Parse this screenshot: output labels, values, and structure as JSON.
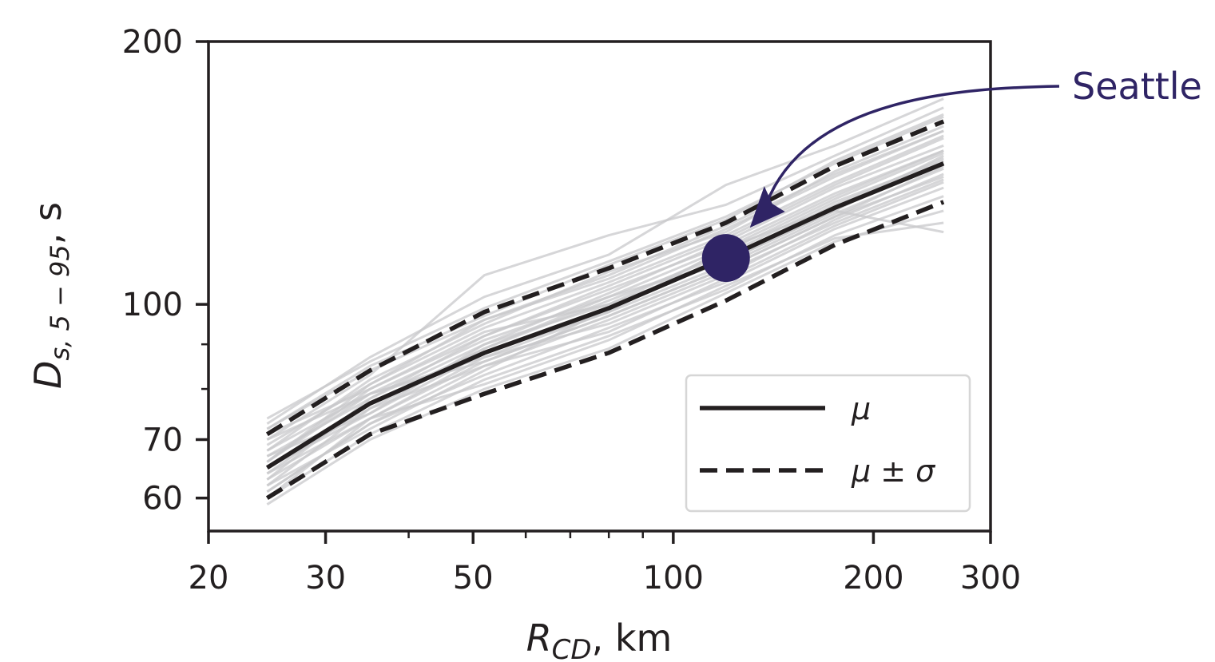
{
  "chart_data": {
    "type": "line",
    "xscale": "log",
    "yscale": "log",
    "xlim": [
      20,
      300
    ],
    "ylim": [
      55,
      200
    ],
    "xlabel": {
      "main": "R",
      "sub": "CD",
      "rest": ", km"
    },
    "ylabel": {
      "main": "D",
      "sub": "s, 5 − 95",
      "rest": ", s"
    },
    "xticks": [
      {
        "value": 20,
        "label": "20"
      },
      {
        "value": 30,
        "label": "30"
      },
      {
        "value": 50,
        "label": "50"
      },
      {
        "value": 100,
        "label": "100"
      },
      {
        "value": 200,
        "label": "200"
      },
      {
        "value": 300,
        "label": "300"
      }
    ],
    "xminor_ticks": [
      40,
      60,
      70,
      80,
      90
    ],
    "yticks": [
      {
        "value": 60,
        "label": "60"
      },
      {
        "value": 70,
        "label": "70"
      },
      {
        "value": 100,
        "label": "100"
      },
      {
        "value": 200,
        "label": "200"
      }
    ],
    "yminor_ticks": [
      80,
      90
    ],
    "x": [
      24.5,
      35,
      52,
      80,
      120,
      175,
      255
    ],
    "series": [
      {
        "name": "μ",
        "style": "solid",
        "values": [
          65,
          77,
          88,
          99,
          113,
          129,
          145
        ]
      },
      {
        "name": "μ ± σ",
        "style": "dashed",
        "values": [
          71,
          84,
          98,
          110,
          124,
          144,
          162
        ]
      },
      {
        "name": "μ ± σ",
        "style": "dashed",
        "legend": false,
        "values": [
          60,
          71,
          79,
          88,
          101,
          117,
          131
        ]
      }
    ],
    "background_series": [
      [
        63,
        74,
        86,
        97,
        110,
        126,
        140
      ],
      [
        68,
        79,
        91,
        102,
        116,
        133,
        150
      ],
      [
        72,
        84,
        96,
        108,
        123,
        141,
        158
      ],
      [
        60,
        71,
        82,
        92,
        104,
        120,
        133
      ],
      [
        66,
        80,
        93,
        100,
        112,
        128,
        148
      ],
      [
        70,
        83,
        108,
        120,
        130,
        148,
        168
      ],
      [
        62,
        76,
        85,
        96,
        109,
        124,
        139
      ],
      [
        67,
        78,
        90,
        103,
        118,
        136,
        152
      ],
      [
        74,
        86,
        99,
        112,
        126,
        145,
        164
      ],
      [
        61,
        73,
        83,
        94,
        106,
        122,
        136
      ],
      [
        65,
        75,
        88,
        98,
        111,
        127,
        143
      ],
      [
        69,
        81,
        94,
        106,
        120,
        138,
        156
      ],
      [
        59,
        70,
        80,
        89,
        103,
        118,
        128
      ],
      [
        64,
        77,
        89,
        101,
        114,
        131,
        146
      ],
      [
        71,
        80,
        92,
        104,
        117,
        134,
        150
      ],
      [
        66,
        79,
        87,
        95,
        108,
        125,
        141
      ],
      [
        73,
        87,
        102,
        114,
        137,
        152,
        172
      ],
      [
        62,
        72,
        84,
        99,
        113,
        130,
        147
      ],
      [
        68,
        82,
        95,
        109,
        121,
        142,
        160
      ],
      [
        60,
        74,
        81,
        91,
        105,
        119,
        124
      ],
      [
        67,
        75,
        90,
        100,
        115,
        132,
        149
      ],
      [
        63,
        78,
        92,
        105,
        119,
        137,
        155
      ],
      [
        70,
        79,
        86,
        97,
        110,
        126,
        144
      ],
      [
        65,
        76,
        89,
        102,
        112,
        128,
        121
      ],
      [
        72,
        85,
        97,
        111,
        125,
        146,
        165
      ],
      [
        61,
        73,
        85,
        93,
        107,
        123,
        138
      ],
      [
        66,
        81,
        96,
        107,
        122,
        140,
        158
      ],
      [
        64,
        74,
        87,
        98,
        116,
        129,
        145
      ]
    ],
    "colors": {
      "mean": "#231f20",
      "members": "#c8c8cb",
      "highlight": "#2f2465"
    },
    "highlight_point": {
      "x": 120,
      "y": 113,
      "label": "Seattle"
    },
    "legend": {
      "position": "lower-right",
      "entries": [
        {
          "label": "μ",
          "style": "solid"
        },
        {
          "label": "μ ± σ",
          "style": "dashed"
        }
      ]
    },
    "grid": false
  }
}
